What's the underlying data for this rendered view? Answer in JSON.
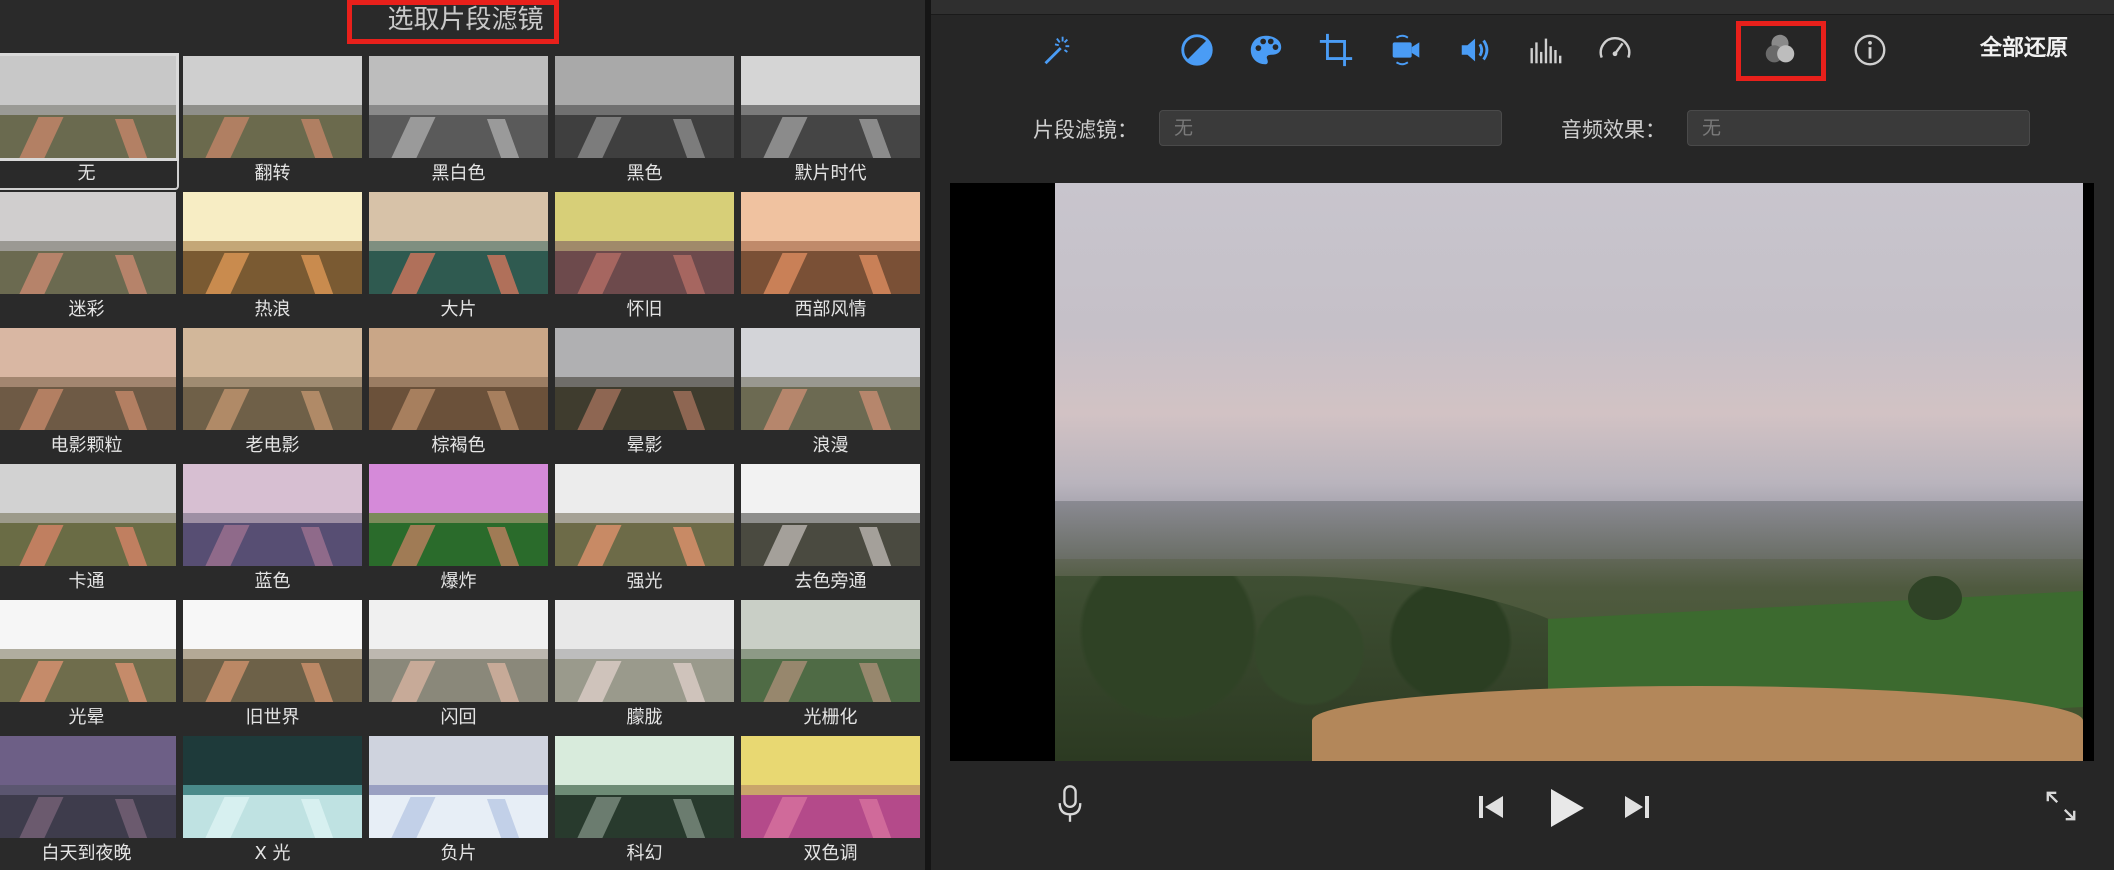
{
  "left_panel": {
    "title": "选取片段滤镜",
    "filters": [
      {
        "label": "无",
        "sky": "#c8c8c8",
        "band": "#9a9a95",
        "land": "#6a6a4f",
        "road": "#b38064",
        "selected": true
      },
      {
        "label": "翻转",
        "sky": "#cfcfcf",
        "band": "#8f8f8a",
        "land": "#6b6a4d",
        "road": "#b07f62",
        "selected": false
      },
      {
        "label": "黑白色",
        "sky": "#bdbdbd",
        "band": "#8a8a8a",
        "land": "#5a5a5a",
        "road": "#9a9a9a",
        "selected": false
      },
      {
        "label": "黑色",
        "sky": "#a9a9a9",
        "band": "#707070",
        "land": "#3f3f3f",
        "road": "#7c7c7c",
        "selected": false
      },
      {
        "label": "默片时代",
        "sky": "#d5d5d5",
        "band": "#7b7b7b",
        "land": "#454545",
        "road": "#8b8b8b",
        "selected": false
      },
      {
        "label": "迷彩",
        "sky": "#d0cece",
        "band": "#9b9993",
        "land": "#6b6a50",
        "road": "#b6836a",
        "selected": false
      },
      {
        "label": "热浪",
        "sky": "#f7edc4",
        "band": "#c4a777",
        "land": "#7a5a32",
        "road": "#c98b4e",
        "selected": false
      },
      {
        "label": "大片",
        "sky": "#d7c2a8",
        "band": "#7f8f80",
        "land": "#2f5a50",
        "road": "#b0705a",
        "selected": false
      },
      {
        "label": "怀旧",
        "sky": "#d7cf78",
        "band": "#a08a6a",
        "land": "#6d4a4c",
        "road": "#a66660",
        "selected": false
      },
      {
        "label": "西部风情",
        "sky": "#f0c2a0",
        "band": "#c08a6a",
        "land": "#7a5036",
        "road": "#c98057",
        "selected": false
      },
      {
        "label": "电影颗粒",
        "sky": "#d9b7a3",
        "band": "#a38670",
        "land": "#6e5a45",
        "road": "#b37f62",
        "selected": false
      },
      {
        "label": "老电影",
        "sky": "#d2b79a",
        "band": "#a08c72",
        "land": "#6f6048",
        "road": "#b08a67",
        "selected": false
      },
      {
        "label": "棕褐色",
        "sky": "#c9a687",
        "band": "#9b7d63",
        "land": "#6b513a",
        "road": "#a77f5e",
        "selected": false
      },
      {
        "label": "晕影",
        "sky": "#b0b0b2",
        "band": "#6f6d69",
        "land": "#3f3c2e",
        "road": "#8e6652",
        "selected": false
      },
      {
        "label": "浪漫",
        "sky": "#d3d4d8",
        "band": "#999890",
        "land": "#6c6a52",
        "road": "#b6866c",
        "selected": false
      },
      {
        "label": "卡通",
        "sky": "#d2d2d2",
        "band": "#9c9a8a",
        "land": "#6a6c45",
        "road": "#c07f60",
        "selected": false
      },
      {
        "label": "蓝色",
        "sky": "#d7bfd2",
        "band": "#9e8fa4",
        "land": "#574e73",
        "road": "#8f6a8a",
        "selected": false
      },
      {
        "label": "爆炸",
        "sky": "#d58ad9",
        "band": "#7c8a5a",
        "land": "#2a6b2b",
        "road": "#a07b55",
        "selected": false
      },
      {
        "label": "强光",
        "sky": "#ececec",
        "band": "#a6a296",
        "land": "#6d6b48",
        "road": "#c88a65",
        "selected": false
      },
      {
        "label": "去色旁通",
        "sky": "#f2f2f2",
        "band": "#8e8e8c",
        "land": "#4a4a40",
        "road": "#a4a09a",
        "selected": false
      },
      {
        "label": "光晕",
        "sky": "#f6f6f6",
        "band": "#b0ad9f",
        "land": "#6f6d4c",
        "road": "#c58b6a",
        "selected": false
      },
      {
        "label": "旧世界",
        "sky": "#f7f7f7",
        "band": "#b4a996",
        "land": "#6d6148",
        "road": "#bb8865",
        "selected": false
      },
      {
        "label": "闪回",
        "sky": "#f0f0f0",
        "band": "#bdb8b0",
        "land": "#8a887a",
        "road": "#c7aa98",
        "selected": false
      },
      {
        "label": "朦胧",
        "sky": "#e8e8e8",
        "band": "#bdbdbd",
        "land": "#9a9a8c",
        "road": "#cfc3bb",
        "selected": false
      },
      {
        "label": "光栅化",
        "sky": "#c9cfc6",
        "band": "#8d9a86",
        "land": "#4f6b45",
        "road": "#97876d",
        "selected": false
      },
      {
        "label": "白天到夜晚",
        "sky": "#6d5f86",
        "band": "#5b5670",
        "land": "#3e3c4c",
        "road": "#6b5a6e",
        "selected": false
      },
      {
        "label": "X 光",
        "sky": "#1e3a3a",
        "band": "#4a8a8a",
        "land": "#bfe2e2",
        "road": "#d7f0f0",
        "selected": false
      },
      {
        "label": "负片",
        "sky": "#cfd3de",
        "band": "#9aa0c2",
        "land": "#e7eef6",
        "road": "#c2d0e8",
        "selected": false
      },
      {
        "label": "科幻",
        "sky": "#d8ebdc",
        "band": "#6e8c76",
        "land": "#283a2d",
        "road": "#6b7c6f",
        "selected": false
      },
      {
        "label": "双色调",
        "sky": "#e8d872",
        "band": "#c9a56a",
        "land": "#b44a8a",
        "road": "#d06a9a",
        "selected": false
      }
    ]
  },
  "toolbar": {
    "tools": [
      {
        "name": "enhance-magic-wand-icon"
      },
      {
        "name": "color-balance-icon"
      },
      {
        "name": "color-correction-palette-icon"
      },
      {
        "name": "crop-icon"
      },
      {
        "name": "stabilization-camera-icon"
      },
      {
        "name": "volume-icon"
      },
      {
        "name": "noise-reduction-equalizer-icon"
      },
      {
        "name": "speed-gauge-icon"
      },
      {
        "name": "clip-filter-icon"
      },
      {
        "name": "info-icon"
      }
    ],
    "restore_all": "全部还原",
    "accent_color": "#4a9cf5"
  },
  "settings": {
    "clip_filter_label": "片段滤镜：",
    "clip_filter_value": "无",
    "audio_effect_label": "音频效果：",
    "audio_effect_value": "无"
  },
  "player": {
    "controls": [
      {
        "name": "microphone-icon"
      },
      {
        "name": "skip-back-icon"
      },
      {
        "name": "play-icon"
      },
      {
        "name": "skip-forward-icon"
      },
      {
        "name": "fullscreen-icon"
      }
    ]
  }
}
